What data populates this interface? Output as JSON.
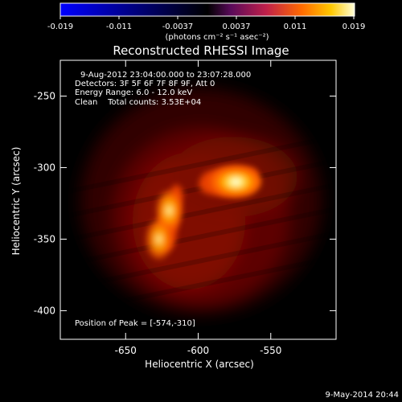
{
  "colorbar": {
    "ticks": [
      "-0.019",
      "-0.011",
      "-0.0037",
      "0.0037",
      "0.011",
      "0.019"
    ],
    "unit_label": "(photons cm⁻² s⁻¹ asec⁻²)",
    "range": [
      -0.019,
      0.019
    ]
  },
  "info": {
    "time_range": "9-Aug-2012 23:04:00.000 to 23:07:28.000",
    "detectors": "Detectors: 3F 5F 6F 7F 8F 9F, Att 0",
    "energy_range": "Energy Range: 6.0 - 12.0 keV",
    "clean_counts": "Clean    Total counts: 3.53E+04",
    "peak_position": "Position of Peak = [-574,-310]"
  },
  "footer": {
    "date": "9-May-2014 20:44"
  },
  "chart_data": {
    "type": "heatmap",
    "title": "Reconstructed RHESSI Image",
    "xlabel": "Heliocentric X (arcsec)",
    "ylabel": "Heliocentric Y (arcsec)",
    "xlim": [
      -695,
      -505
    ],
    "ylim": [
      -420,
      -225
    ],
    "x_ticks": [
      -650,
      -600,
      -550
    ],
    "y_ticks": [
      -250,
      -300,
      -350,
      -400
    ],
    "x_tick_labels": [
      "-650",
      "-600",
      "-550"
    ],
    "y_tick_labels": [
      "-250",
      "-300",
      "-350",
      "-400"
    ],
    "colormap": "hot",
    "sources": [
      {
        "x": -574,
        "y": -310,
        "peak": 0.019
      },
      {
        "x": -620,
        "y": -330,
        "peak": 0.014
      },
      {
        "x": -627,
        "y": -350,
        "peak": 0.013
      }
    ]
  }
}
